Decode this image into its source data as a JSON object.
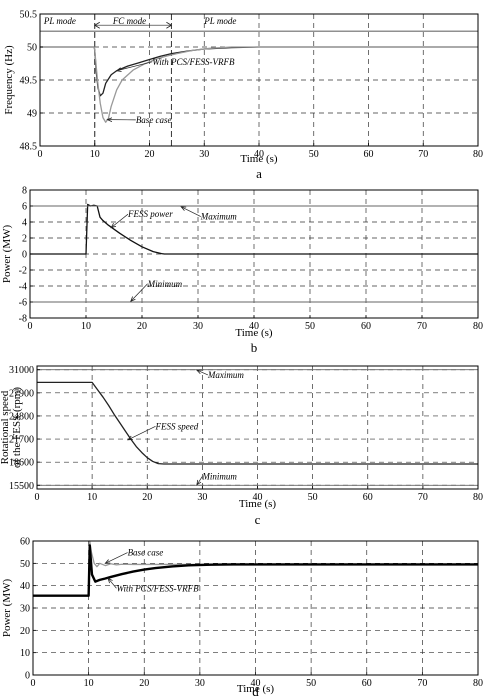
{
  "chart_data": [
    {
      "type": "line",
      "panel_label": "a",
      "xlabel": "Time (s)",
      "ylabel": "Frequency (Hz)",
      "xlim": [
        0,
        80
      ],
      "ylim": [
        48.5,
        50.5
      ],
      "xticks": [
        0,
        10,
        20,
        30,
        40,
        50,
        60,
        70,
        80
      ],
      "yticks": [
        48.5,
        49,
        49.5,
        50,
        50.5
      ],
      "ytick_labels": [
        "48.5",
        "49",
        "49.5",
        "50",
        "50.5"
      ],
      "grid": true,
      "series": [
        {
          "name": "With PCS/FESS-VRFB",
          "color": "#222222",
          "x": [
            0,
            9.9,
            10,
            10.3,
            10.6,
            11,
            11.5,
            12,
            13,
            14,
            16,
            18,
            20,
            22,
            24,
            27,
            30,
            35,
            40,
            80
          ],
          "y": [
            50,
            50,
            49.95,
            49.6,
            49.38,
            49.26,
            49.3,
            49.45,
            49.58,
            49.64,
            49.71,
            49.76,
            49.81,
            49.86,
            49.9,
            49.94,
            49.97,
            49.99,
            50,
            50
          ]
        },
        {
          "name": "Base case",
          "color": "#999999",
          "x": [
            0,
            9.9,
            10,
            10.5,
            11,
            11.5,
            12,
            12.5,
            13,
            14,
            15,
            17,
            19,
            21,
            23,
            25,
            28,
            31,
            35,
            40,
            80
          ],
          "y": [
            50,
            50,
            49.95,
            49.5,
            49.15,
            48.93,
            48.86,
            48.92,
            49.1,
            49.35,
            49.5,
            49.65,
            49.74,
            49.81,
            49.86,
            49.9,
            49.95,
            49.98,
            50,
            50,
            50
          ]
        }
      ],
      "mode_regions": [
        {
          "label": "PL mode",
          "x_start": 0,
          "x_end": 10
        },
        {
          "label": "FC mode",
          "x_start": 10,
          "x_end": 24
        },
        {
          "label": "PL mode",
          "x_start": 24,
          "x_end": 80
        }
      ],
      "mode_boundaries": [
        10,
        24
      ],
      "annotations": [
        {
          "text": "PL mode",
          "x": 0.7,
          "y": 50.35
        },
        {
          "text": "FC mode",
          "x": 13.3,
          "y": 50.35
        },
        {
          "text": "PL mode",
          "x": 30,
          "y": 50.35
        },
        {
          "text": "With PCS/FESS-VRFB",
          "x": 20.5,
          "y": 49.73,
          "arrow_to": [
            14,
            49.64
          ]
        },
        {
          "text": "Base case",
          "x": 17.5,
          "y": 48.85,
          "arrow_to": [
            12.3,
            48.9
          ]
        }
      ]
    },
    {
      "type": "line",
      "panel_label": "b",
      "xlabel": "Time (s)",
      "ylabel": "Power (MW)",
      "xlim": [
        0,
        80
      ],
      "ylim": [
        -8,
        8
      ],
      "xticks": [
        0,
        10,
        20,
        30,
        40,
        50,
        60,
        70,
        80
      ],
      "yticks": [
        -8,
        -6,
        -4,
        -2,
        0,
        2,
        4,
        6,
        8
      ],
      "ytick_labels": [
        "-8",
        "-6",
        "-4",
        "-2",
        "0",
        "2",
        "4",
        "6",
        "8"
      ],
      "grid": true,
      "series": [
        {
          "name": "FESS power",
          "color": "#111111",
          "x": [
            0,
            10,
            10.3,
            10.8,
            11.4,
            12,
            12.5,
            13,
            14,
            16,
            18,
            20,
            22,
            23.5,
            24,
            80
          ],
          "y": [
            0,
            0,
            6.2,
            6,
            6.1,
            6,
            4.6,
            4.2,
            3.6,
            2.6,
            1.7,
            0.9,
            0.3,
            0.05,
            0,
            0
          ]
        },
        {
          "name": "Maximum",
          "color": "#666666",
          "x": [
            0,
            80
          ],
          "y": [
            6,
            6
          ]
        },
        {
          "name": "Minimum",
          "color": "#666666",
          "x": [
            0,
            80
          ],
          "y": [
            -6,
            -6
          ]
        }
      ],
      "annotations": [
        {
          "text": "FESS power",
          "x": 17.5,
          "y": 4.6,
          "arrow_to": [
            14.5,
            3.3
          ]
        },
        {
          "text": "Maximum",
          "x": 30.5,
          "y": 4.3,
          "arrow_to": [
            27,
            5.9
          ]
        },
        {
          "text": "Minimum",
          "x": 21,
          "y": -4.1,
          "arrow_to": [
            18,
            -5.9
          ]
        }
      ]
    },
    {
      "type": "line",
      "panel_label": "c",
      "xlabel": "Time (s)",
      "ylabel": "Rotational speed of the FESS (rpm)",
      "xlim": [
        0,
        80
      ],
      "ylim": [
        15000,
        31500
      ],
      "xticks": [
        0,
        10,
        20,
        30,
        40,
        50,
        60,
        70,
        80
      ],
      "yticks": [
        15500,
        18600,
        21700,
        24800,
        27900,
        31000
      ],
      "ytick_labels": [
        "15500",
        "18600",
        "21700",
        "24800",
        "27900",
        "31000"
      ],
      "grid": true,
      "series": [
        {
          "name": "FESS speed",
          "color": "#222222",
          "x": [
            0,
            10,
            11,
            12,
            13,
            14,
            15,
            16,
            17,
            18,
            19,
            20,
            21,
            22,
            23,
            80
          ],
          "y": [
            29300,
            29300,
            28300,
            27300,
            26200,
            25000,
            23900,
            22800,
            21700,
            20700,
            19900,
            19200,
            18700,
            18400,
            18350,
            18350
          ]
        },
        {
          "name": "Maximum",
          "color": "#666666",
          "x": [
            0,
            80
          ],
          "y": [
            31000,
            31000
          ]
        },
        {
          "name": "Minimum",
          "color": "#666666",
          "x": [
            0,
            80
          ],
          "y": [
            15500,
            15500
          ]
        }
      ],
      "annotations": [
        {
          "text": "Maximum",
          "x": 31,
          "y": 29900,
          "arrow_to": [
            29,
            30950
          ]
        },
        {
          "text": "FESS speed",
          "x": 21.5,
          "y": 23000,
          "arrow_to": [
            16.5,
            21600
          ]
        },
        {
          "text": "Minimum",
          "x": 30,
          "y": 16300,
          "arrow_to": [
            29,
            15550
          ]
        }
      ]
    },
    {
      "type": "line",
      "panel_label": "d",
      "xlabel": "Time (s)",
      "ylabel": "Power (MW)",
      "xlim": [
        0,
        80
      ],
      "ylim": [
        0,
        60
      ],
      "xticks": [
        0,
        10,
        20,
        30,
        40,
        50,
        60,
        70,
        80
      ],
      "yticks": [
        0,
        10,
        20,
        30,
        40,
        50,
        60
      ],
      "ytick_labels": [
        "0",
        "10",
        "20",
        "30",
        "40",
        "50",
        "60"
      ],
      "grid": true,
      "series": [
        {
          "name": "Base case",
          "color": "#9a9a9a",
          "x": [
            0,
            9.9,
            10,
            10.2,
            10.5,
            11,
            11.5,
            12,
            13,
            14,
            15,
            16,
            18,
            20,
            80
          ],
          "y": [
            35.5,
            35.5,
            35.5,
            60,
            55,
            50,
            48.5,
            50,
            49,
            49.8,
            49.3,
            49.6,
            49.5,
            49.5,
            49.5
          ]
        },
        {
          "name": "With PCS/FESS-VRFB",
          "color": "#000000",
          "x": [
            0,
            9.9,
            10,
            10.2,
            10.6,
            11.2,
            12,
            13,
            14,
            16,
            18,
            20,
            22,
            25,
            28,
            32,
            36,
            80
          ],
          "y": [
            35.5,
            35.5,
            35.5,
            58,
            45,
            41.8,
            42.6,
            43.2,
            43.9,
            45.2,
            46.3,
            47.2,
            47.9,
            48.6,
            49.1,
            49.4,
            49.5,
            49.5
          ]
        }
      ],
      "annotations": [
        {
          "text": "Base case",
          "x": 17,
          "y": 53.5,
          "arrow_to": [
            13,
            50
          ]
        },
        {
          "text": "With PCS/FESS-VRFB",
          "x": 15,
          "y": 37.5,
          "arrow_to": [
            13.5,
            43.3
          ]
        }
      ]
    }
  ]
}
